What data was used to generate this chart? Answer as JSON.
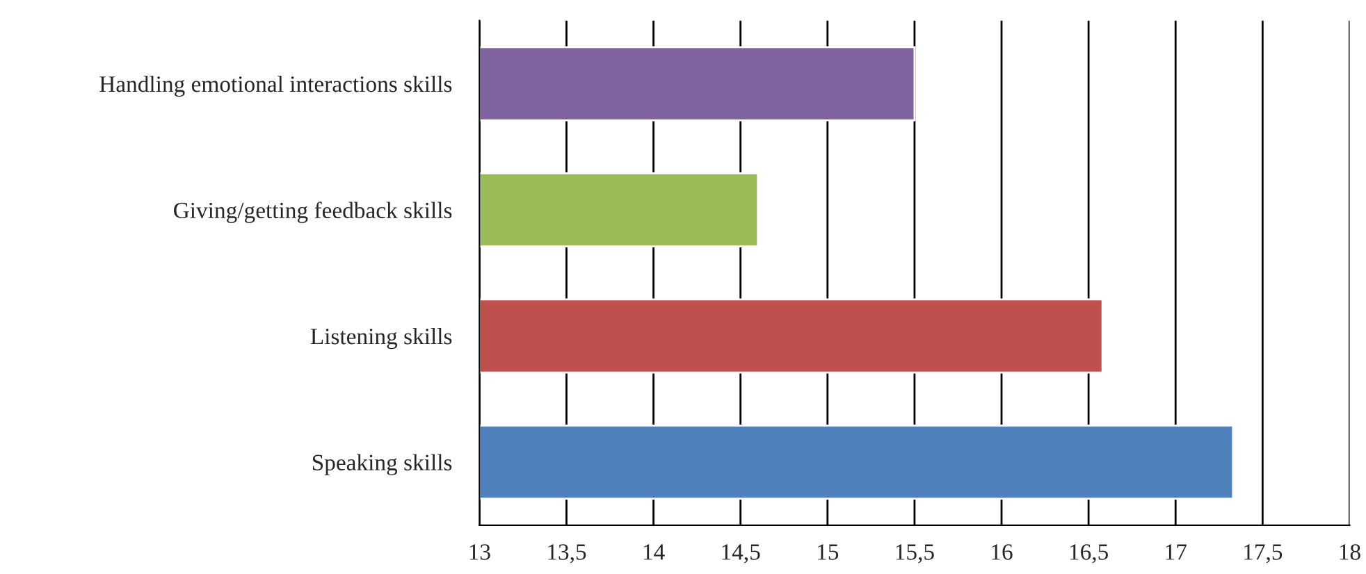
{
  "chart_data": {
    "type": "bar",
    "orientation": "horizontal",
    "categories": [
      "Handling emotional interactions skills",
      "Giving/getting feedback skills",
      "Listening skills",
      "Speaking skills"
    ],
    "values": [
      15.5,
      14.6,
      16.58,
      17.33
    ],
    "colors": [
      "#8064a2",
      "#9bbb59",
      "#c0504d",
      "#4f81bd"
    ],
    "xlim": [
      13,
      18
    ],
    "xticks": [
      13,
      {
        "value": 13.5,
        "label": "13,5"
      },
      14,
      {
        "value": 14.5,
        "label": "14,5"
      },
      15,
      {
        "value": 15.5,
        "label": "15,5"
      },
      16,
      {
        "value": 16.5,
        "label": "16,5"
      },
      17,
      {
        "value": 17.5,
        "label": "17,5"
      },
      18
    ],
    "grid": "x",
    "legend": false
  }
}
